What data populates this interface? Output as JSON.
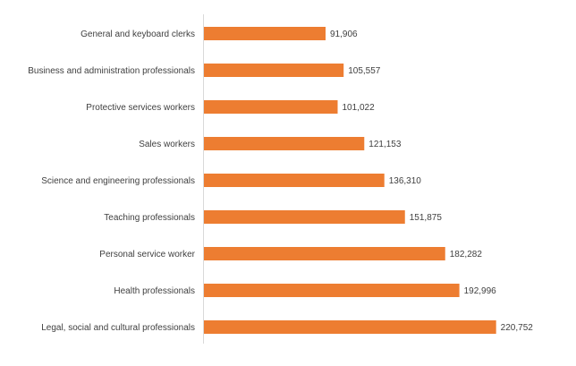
{
  "chart_data": {
    "type": "bar",
    "orientation": "horizontal",
    "title": "",
    "xlabel": "",
    "ylabel": "",
    "grid": false,
    "legend": "none",
    "bar_color": "#ED7D31",
    "label_color": "#404040",
    "axis_color": "#D9D9D9",
    "xlim": [
      0,
      225000
    ],
    "categories": [
      "General and keyboard clerks",
      "Business and administration professionals",
      "Protective services workers",
      "Sales workers",
      "Science and engineering professionals",
      "Teaching professionals",
      "Personal service worker",
      "Health professionals",
      "Legal, social and cultural professionals"
    ],
    "values": [
      91906,
      105557,
      101022,
      121153,
      136310,
      151875,
      182282,
      192996,
      220752
    ],
    "value_labels": [
      "91,906",
      "105,557",
      "101,022",
      "121,153",
      "136,310",
      "151,875",
      "182,282",
      "192,996",
      "220,752"
    ]
  }
}
